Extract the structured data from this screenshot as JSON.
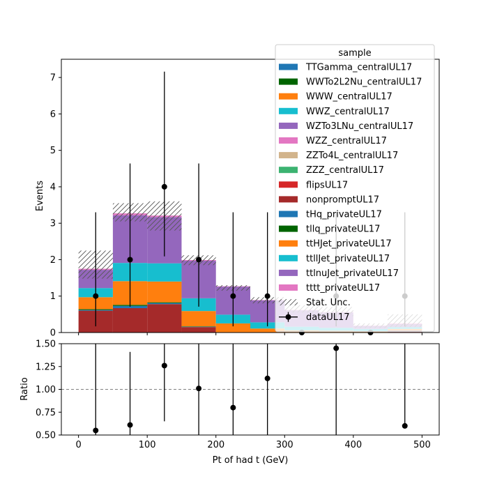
{
  "chart_data": {
    "type": "bar",
    "stacked": true,
    "xlabel": "Pt of had t (GeV)",
    "bin_edges": [
      0,
      50,
      100,
      150,
      200,
      250,
      300,
      350,
      400,
      450,
      500
    ],
    "xlim": [
      -25,
      525
    ],
    "xticks": [
      0,
      100,
      200,
      300,
      400,
      500
    ],
    "main": {
      "ylabel": "Events",
      "ylim": [
        0,
        7.5
      ],
      "yticks": [
        0,
        1,
        2,
        3,
        4,
        5,
        6,
        7
      ]
    },
    "ratio": {
      "ylabel": "Ratio",
      "ylim": [
        0.5,
        1.5
      ],
      "yticks": [
        0.5,
        0.75,
        1.0,
        1.25,
        1.5
      ],
      "yticklabels": [
        "0.50",
        "0.75",
        "1.00",
        "1.25",
        "1.50"
      ],
      "reference_line": 1.0,
      "points": [
        {
          "x": 25,
          "y": 0.55,
          "yerr_low": 0.05,
          "yerr_high": 0.95
        },
        {
          "x": 75,
          "y": 0.61,
          "yerr_low": 0.11,
          "yerr_high": 0.8
        },
        {
          "x": 125,
          "y": 1.26,
          "yerr_low": 0.61,
          "yerr_high": 0.24
        },
        {
          "x": 175,
          "y": 1.01,
          "yerr_low": 0.51,
          "yerr_high": 0.49
        },
        {
          "x": 225,
          "y": 0.8,
          "yerr_low": 0.3,
          "yerr_high": 0.7
        },
        {
          "x": 275,
          "y": 1.12,
          "yerr_low": 0.62,
          "yerr_high": 0.38
        },
        {
          "x": 375,
          "y": 1.45,
          "yerr_low": 0.95,
          "yerr_high": 0.05
        },
        {
          "x": 475,
          "y": 0.6,
          "yerr_low": 0.0,
          "yerr_high": 0.9
        }
      ]
    },
    "legend": {
      "title": "sample",
      "placement": "top-right",
      "stat_unc_label": "Stat. Unc.",
      "data_label": "dataUL17"
    },
    "series": [
      {
        "name": "TTGamma_centralUL17",
        "color": "#1f77b4",
        "values": [
          0,
          0,
          0,
          0,
          0,
          0,
          0,
          0,
          0,
          0
        ]
      },
      {
        "name": "WWTo2L2Nu_centralUL17",
        "color": "#006400",
        "values": [
          0,
          0,
          0,
          0,
          0,
          0,
          0,
          0,
          0,
          0
        ]
      },
      {
        "name": "WWW_centralUL17",
        "color": "#ff7f0e",
        "values": [
          0,
          0,
          0,
          0,
          0,
          0,
          0,
          0,
          0,
          0
        ]
      },
      {
        "name": "WWZ_centralUL17",
        "color": "#17becf",
        "values": [
          0,
          0,
          0,
          0,
          0,
          0,
          0,
          0,
          0,
          0
        ]
      },
      {
        "name": "WZTo3LNu_centralUL17",
        "color": "#9467bd",
        "values": [
          0,
          0,
          0,
          0,
          0,
          0,
          0,
          0,
          0,
          0
        ]
      },
      {
        "name": "WZZ_centralUL17",
        "color": "#e377c2",
        "values": [
          0,
          0,
          0,
          0,
          0,
          0,
          0,
          0,
          0,
          0
        ]
      },
      {
        "name": "ZZTo4L_centralUL17",
        "color": "#d2b48c",
        "values": [
          0,
          0,
          0,
          0,
          0,
          0,
          0,
          0,
          0,
          0
        ]
      },
      {
        "name": "ZZZ_centralUL17",
        "color": "#3cb371",
        "values": [
          0,
          0,
          0,
          0,
          0,
          0,
          0,
          0,
          0,
          0
        ]
      },
      {
        "name": "flipsUL17",
        "color": "#d62728",
        "values": [
          0,
          0,
          0,
          0,
          0,
          0,
          0,
          0,
          0,
          0
        ]
      },
      {
        "name": "nonpromptUL17",
        "color": "#a52a2a",
        "values": [
          0.6,
          0.67,
          0.78,
          0.15,
          0,
          0,
          0,
          0,
          0,
          0.05
        ]
      },
      {
        "name": "tHq_privateUL17",
        "color": "#1f77b4",
        "values": [
          0.02,
          0.06,
          0.03,
          0.01,
          0.01,
          0.01,
          0.01,
          0.01,
          0.01,
          0.01
        ]
      },
      {
        "name": "tllq_privateUL17",
        "color": "#006400",
        "values": [
          0.02,
          0.03,
          0.02,
          0.01,
          0,
          0,
          0,
          0,
          0,
          0
        ]
      },
      {
        "name": "ttHJet_privateUL17",
        "color": "#ff7f0e",
        "values": [
          0.33,
          0.65,
          0.57,
          0.42,
          0.24,
          0.1,
          0.05,
          0.04,
          0.03,
          0.04
        ]
      },
      {
        "name": "ttllJet_privateUL17",
        "color": "#17becf",
        "values": [
          0.25,
          0.5,
          0.5,
          0.35,
          0.24,
          0.17,
          0.1,
          0.08,
          0.06,
          0.05
        ]
      },
      {
        "name": "ttlnuJet_privateUL17",
        "color": "#9467bd",
        "values": [
          0.5,
          1.31,
          1.27,
          1.03,
          0.77,
          0.6,
          0.45,
          0.42,
          0.08,
          0.08
        ]
      },
      {
        "name": "tttt_privateUL17",
        "color": "#e377c2",
        "values": [
          0.03,
          0.05,
          0.04,
          0.02,
          0.01,
          0.01,
          0.01,
          0.01,
          0.01,
          0.02
        ]
      }
    ],
    "stat_unc": [
      {
        "low": 1.48,
        "high": 2.25
      },
      {
        "low": 3.05,
        "high": 3.55
      },
      {
        "low": 2.8,
        "high": 3.6
      },
      {
        "low": 1.85,
        "high": 2.12
      },
      {
        "low": 1.15,
        "high": 1.3
      },
      {
        "low": 0.8,
        "high": 0.97
      },
      {
        "low": 0.55,
        "high": 0.75
      },
      {
        "low": 0.45,
        "high": 0.7
      },
      {
        "low": 0.12,
        "high": 0.25
      },
      {
        "low": 0.15,
        "high": 0.5
      }
    ],
    "data_points": [
      {
        "x": 25,
        "y": 1,
        "yerr_low": 0.83,
        "yerr_high": 2.3
      },
      {
        "x": 75,
        "y": 2,
        "yerr_low": 1.29,
        "yerr_high": 2.64
      },
      {
        "x": 125,
        "y": 4,
        "yerr_low": 1.91,
        "yerr_high": 3.16
      },
      {
        "x": 175,
        "y": 2,
        "yerr_low": 1.29,
        "yerr_high": 2.64
      },
      {
        "x": 225,
        "y": 1,
        "yerr_low": 0.83,
        "yerr_high": 2.3
      },
      {
        "x": 275,
        "y": 1,
        "yerr_low": 0.83,
        "yerr_high": 2.3
      },
      {
        "x": 325,
        "y": 0,
        "yerr_low": 0,
        "yerr_high": 0
      },
      {
        "x": 375,
        "y": 1,
        "yerr_low": 0.83,
        "yerr_high": 2.3
      },
      {
        "x": 425,
        "y": 0,
        "yerr_low": 0,
        "yerr_high": 0
      },
      {
        "x": 475,
        "y": 1,
        "yerr_low": 0.83,
        "yerr_high": 2.3
      }
    ]
  }
}
